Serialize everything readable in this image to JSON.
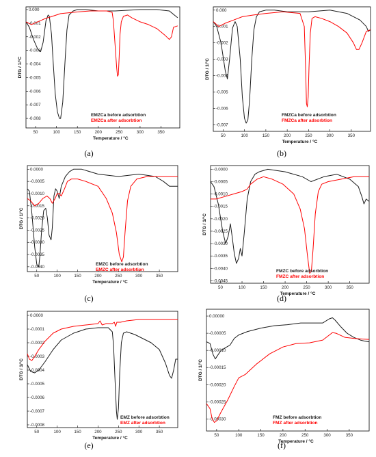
{
  "colors": {
    "before": "#1a1a1a",
    "after": "#ff0000"
  },
  "chart_data": [
    {
      "type": "line",
      "caption": "(a)",
      "xlabel": "Temperature / °C",
      "ylabel": "DTG / 1/°C",
      "xlim": [
        27,
        395
      ],
      "ylim": [
        -0.0087,
        0.0002
      ],
      "xticks": [
        50,
        100,
        150,
        200,
        250,
        300,
        350
      ],
      "xtick_labels": [
        "50",
        "100",
        "150",
        "200",
        "250",
        "300",
        "350"
      ],
      "yticks": [
        0,
        -0.001,
        -0.002,
        -0.003,
        -0.004,
        -0.005,
        -0.006,
        -0.007,
        -0.008
      ],
      "ytick_labels": [
        "0.000",
        "-0.001",
        "-0.002",
        "-0.003",
        "-0.004",
        "-0.005",
        "-0.006",
        "-0.007",
        "-0.008"
      ],
      "series": [
        {
          "name": "EMZCa before adsorbtion",
          "color": "#1a1a1a",
          "x": [
            27,
            35,
            45,
            55,
            62,
            68,
            75,
            80,
            83,
            88,
            92,
            97,
            102,
            107,
            110,
            115,
            120,
            125,
            130,
            140,
            150,
            170,
            200,
            240,
            300,
            340,
            370,
            390
          ],
          "y": [
            -0.0009,
            -0.0013,
            -0.0022,
            -0.0029,
            -0.0031,
            -0.0024,
            -0.0008,
            -0.0004,
            -0.0005,
            -0.0018,
            -0.0038,
            -0.0062,
            -0.0075,
            -0.008,
            -0.008,
            -0.0068,
            -0.004,
            -0.0015,
            -0.0004,
            -0.0001,
            0.0,
            0.0,
            -0.0001,
            -0.0001,
            0.0,
            0.0,
            -0.0001,
            -0.0006
          ]
        },
        {
          "name": "EMZCa after adsorbtion",
          "color": "#ff0000",
          "x": [
            27,
            40,
            55,
            70,
            90,
            110,
            140,
            180,
            220,
            233,
            236,
            240,
            244,
            246,
            248,
            250,
            252,
            255,
            260,
            270,
            280,
            300,
            320,
            340,
            360,
            370,
            375,
            380,
            390
          ],
          "y": [
            -0.0009,
            -0.0011,
            -0.0009,
            -0.0007,
            -0.0005,
            -0.0003,
            -0.0002,
            -0.0001,
            -0.0001,
            -0.0002,
            -0.0008,
            -0.0025,
            -0.0043,
            -0.0049,
            -0.0048,
            -0.0035,
            -0.0018,
            -0.0009,
            -0.0005,
            -0.0004,
            -0.0006,
            -0.0009,
            -0.0011,
            -0.0014,
            -0.0019,
            -0.0022,
            -0.002,
            -0.0013,
            -0.0012
          ]
        }
      ]
    },
    {
      "type": "line",
      "caption": "(b)",
      "xlabel": "Temperature / °C",
      "ylabel": "DTG / 1/°C",
      "xlim": [
        27,
        395
      ],
      "ylim": [
        -0.0074,
        0.0002
      ],
      "xticks": [
        50,
        100,
        150,
        200,
        250,
        300,
        350
      ],
      "xtick_labels": [
        "50",
        "100",
        "150",
        "200",
        "250",
        "300",
        "350"
      ],
      "yticks": [
        0,
        -0.001,
        -0.002,
        -0.003,
        -0.004,
        -0.005,
        -0.006,
        -0.007
      ],
      "ytick_labels": [
        "0.000",
        "-0.001",
        "-0.002",
        "-0.003",
        "-0.004",
        "-0.005",
        "-0.006",
        "-0.007"
      ],
      "series": [
        {
          "name": "FMZCa before adsorbtion",
          "color": "#1a1a1a",
          "x": [
            27,
            35,
            45,
            55,
            60,
            65,
            72,
            78,
            83,
            90,
            95,
            100,
            104,
            108,
            112,
            117,
            122,
            128,
            135,
            150,
            170,
            200,
            250,
            300,
            340,
            370,
            385,
            390,
            395
          ],
          "y": [
            -0.0007,
            -0.001,
            -0.002,
            -0.0037,
            -0.0042,
            -0.003,
            -0.0011,
            -0.0007,
            -0.001,
            -0.003,
            -0.0053,
            -0.0066,
            -0.0069,
            -0.0067,
            -0.0055,
            -0.003,
            -0.0012,
            -0.0004,
            -0.0001,
            0.0,
            0.0,
            -0.0001,
            -0.0001,
            0.0,
            -0.0002,
            -0.0006,
            -0.001,
            -0.0013,
            -0.0012
          ]
        },
        {
          "name": "FMZCa after adsorbtion",
          "color": "#ff0000",
          "x": [
            27,
            40,
            55,
            75,
            95,
            120,
            150,
            190,
            230,
            240,
            243,
            245,
            247,
            249,
            251,
            254,
            258,
            265,
            280,
            300,
            320,
            340,
            355,
            362,
            368,
            375,
            385,
            395
          ],
          "y": [
            -0.0007,
            -0.001,
            -0.0008,
            -0.0006,
            -0.0004,
            -0.0003,
            -0.0002,
            -0.0001,
            -0.0002,
            -0.001,
            -0.0035,
            -0.0057,
            -0.0059,
            -0.0053,
            -0.0035,
            -0.0014,
            -0.0005,
            -0.0004,
            -0.0005,
            -0.0007,
            -0.001,
            -0.0014,
            -0.002,
            -0.0024,
            -0.0024,
            -0.002,
            -0.0013,
            -0.0012
          ]
        }
      ]
    },
    {
      "type": "line",
      "caption": "(c)",
      "xlabel": "Temperature / °C",
      "ylabel": "DTG / 1/°C",
      "xlim": [
        27,
        395
      ],
      "ylim": [
        -0.0042,
        0.00015
      ],
      "xticks": [
        50,
        100,
        150,
        200,
        250,
        300,
        350
      ],
      "xtick_labels": [
        "50",
        "100",
        "150",
        "200",
        "250",
        "300",
        "350"
      ],
      "yticks": [
        0,
        -0.0005,
        -0.001,
        -0.0015,
        -0.002,
        -0.0025,
        -0.003,
        -0.0035,
        -0.004
      ],
      "ytick_labels": [
        "0.0000",
        "-0.0005",
        "-0.0010",
        "-0.0015",
        "-0.0020",
        "-0.0025",
        "-0.0030",
        "-0.0035",
        "-0.0040"
      ],
      "series": [
        {
          "name": "EMZC before adsorbtion",
          "color": "#1a1a1a",
          "x": [
            27,
            32,
            38,
            45,
            50,
            55,
            58,
            62,
            67,
            72,
            76,
            80,
            85,
            88,
            92,
            96,
            100,
            105,
            110,
            115,
            120,
            130,
            140,
            160,
            200,
            250,
            300,
            340,
            360,
            375,
            385,
            395
          ],
          "y": [
            -0.0008,
            -0.0009,
            -0.0018,
            -0.0032,
            -0.0039,
            -0.004,
            -0.0035,
            -0.0025,
            -0.0017,
            -0.0016,
            -0.002,
            -0.0027,
            -0.0029,
            -0.0024,
            -0.0011,
            -0.0008,
            -0.0009,
            -0.0012,
            -0.0007,
            -0.0005,
            -0.0003,
            -0.0001,
            0.0,
            0.0,
            -0.0002,
            -0.0003,
            -0.0002,
            -0.0003,
            -0.0005,
            -0.0007,
            -0.0007,
            -0.0007
          ]
        },
        {
          "name": "EMZC after adsorbtion",
          "color": "#ff0000",
          "x": [
            27,
            35,
            45,
            55,
            65,
            75,
            82,
            88,
            95,
            100,
            105,
            110,
            118,
            125,
            135,
            150,
            170,
            200,
            220,
            235,
            245,
            252,
            258,
            262,
            266,
            272,
            280,
            295,
            320,
            360,
            395
          ],
          "y": [
            -0.0012,
            -0.0013,
            -0.0015,
            -0.0014,
            -0.0012,
            -0.0011,
            -0.0012,
            -0.0014,
            -0.0012,
            -0.001,
            -0.001,
            -0.0011,
            -0.0008,
            -0.0005,
            -0.0004,
            -0.0004,
            -0.0005,
            -0.0007,
            -0.0012,
            -0.0018,
            -0.0026,
            -0.0035,
            -0.0038,
            -0.0036,
            -0.0026,
            -0.0013,
            -0.0007,
            -0.0004,
            -0.0003,
            -0.0003,
            -0.0003
          ]
        }
      ]
    },
    {
      "type": "line",
      "caption": "(d)",
      "xlabel": "Temperature / °C",
      "ylabel": "DTG / 1/°C",
      "xlim": [
        27,
        395
      ],
      "ylim": [
        -0.0046,
        0.00015
      ],
      "xticks": [
        50,
        100,
        150,
        200,
        250,
        300,
        350
      ],
      "xtick_labels": [
        "50",
        "100",
        "150",
        "200",
        "250",
        "300",
        "350"
      ],
      "yticks": [
        0,
        -0.0005,
        -0.001,
        -0.0015,
        -0.002,
        -0.0025,
        -0.003,
        -0.0035,
        -0.004,
        -0.0045
      ],
      "ytick_labels": [
        "-0.0000",
        "-0.0005",
        "-0.0010",
        "-0.0015",
        "-0.0020",
        "-0.0025",
        "-0.0030",
        "-0.0035",
        "-0.0040",
        "-0.0045"
      ],
      "series": [
        {
          "name": "FMZC before adsorbtion",
          "color": "#1a1a1a",
          "x": [
            27,
            35,
            45,
            55,
            62,
            68,
            73,
            77,
            82,
            87,
            92,
            96,
            100,
            105,
            112,
            120,
            130,
            140,
            160,
            200,
            240,
            260,
            290,
            320,
            350,
            370,
            378,
            383,
            388,
            395
          ],
          "y": [
            -0.0005,
            -0.0007,
            -0.0014,
            -0.0025,
            -0.003,
            -0.0027,
            -0.0022,
            -0.0027,
            -0.0034,
            -0.0038,
            -0.0036,
            -0.0032,
            -0.0035,
            -0.0026,
            -0.0012,
            -0.0005,
            -0.0002,
            -0.0001,
            0.0,
            -0.0001,
            -0.0003,
            -0.0005,
            -0.0003,
            -0.0002,
            -0.0004,
            -0.0007,
            -0.0011,
            -0.0014,
            -0.0012,
            -0.0013
          ]
        },
        {
          "name": "FMZC after adsorbtion",
          "color": "#ff0000",
          "x": [
            27,
            40,
            60,
            80,
            100,
            112,
            120,
            135,
            150,
            170,
            195,
            220,
            235,
            245,
            252,
            257,
            261,
            265,
            270,
            277,
            285,
            300,
            330,
            360,
            395
          ],
          "y": [
            -0.0012,
            -0.0012,
            -0.0011,
            -0.001,
            -0.0009,
            -0.0008,
            -0.0006,
            -0.0004,
            -0.0003,
            -0.0004,
            -0.0006,
            -0.001,
            -0.0016,
            -0.0024,
            -0.0035,
            -0.0042,
            -0.0041,
            -0.0032,
            -0.0018,
            -0.0009,
            -0.0006,
            -0.0005,
            -0.0004,
            -0.0003,
            -0.0003
          ]
        }
      ]
    },
    {
      "type": "line",
      "caption": "(e)",
      "xlabel": "Temperature / °C",
      "ylabel": "DTG / 1/°C",
      "xlim": [
        27,
        395
      ],
      "ylim": [
        -0.00082,
        3e-05
      ],
      "xticks": [
        50,
        100,
        150,
        200,
        250,
        300,
        350
      ],
      "xtick_labels": [
        "50",
        "100",
        "150",
        "200",
        "250",
        "300",
        "350"
      ],
      "yticks": [
        0,
        -0.0001,
        -0.0002,
        -0.0003,
        -0.0004,
        -0.0005,
        -0.0006,
        -0.0007,
        -0.0008
      ],
      "ytick_labels": [
        "0.0000",
        "-0.0001",
        "-0.0002",
        "-0.0003",
        "-0.0004",
        "-0.0005",
        "-0.0006",
        "-0.0007",
        "-0.0008"
      ],
      "series": [
        {
          "name": "EMZ before adsorbtion",
          "color": "#1a1a1a",
          "x": [
            27,
            35,
            45,
            55,
            70,
            90,
            110,
            140,
            170,
            200,
            225,
            235,
            238,
            242,
            245,
            247,
            250,
            253,
            257,
            262,
            270,
            290,
            310,
            330,
            350,
            365,
            375,
            380,
            385,
            390,
            395
          ],
          "y": [
            -0.00036,
            -0.00041,
            -0.00042,
            -0.0004,
            -0.00034,
            -0.00025,
            -0.00018,
            -0.00013,
            -0.0001,
            -9e-05,
            -9e-05,
            -0.00012,
            -0.00022,
            -0.0005,
            -0.0007,
            -0.00076,
            -0.00068,
            -0.00042,
            -0.0002,
            -0.00013,
            -0.00012,
            -0.00014,
            -0.00017,
            -0.0002,
            -0.00025,
            -0.00035,
            -0.00044,
            -0.00046,
            -0.0004,
            -0.00032,
            -0.00032
          ]
        },
        {
          "name": "EMZ after adsorbtion",
          "color": "#ff0000",
          "x": [
            27,
            32,
            38,
            45,
            55,
            70,
            90,
            110,
            140,
            170,
            200,
            205,
            210,
            220,
            235,
            240,
            243,
            246,
            255,
            270,
            300,
            330,
            360,
            395
          ],
          "y": [
            -0.00028,
            -0.00032,
            -0.00033,
            -0.0003,
            -0.00025,
            -0.00019,
            -0.00013,
            -0.0001,
            -8e-05,
            -7e-05,
            -6e-05,
            -4e-05,
            -7e-05,
            -6e-05,
            -6e-05,
            -5e-05,
            -8e-05,
            -5e-05,
            -5e-05,
            -4e-05,
            -3e-05,
            -3e-05,
            -3e-05,
            -3e-05
          ]
        }
      ]
    },
    {
      "type": "line",
      "caption": "(f)",
      "xlabel": "Temperature / °C",
      "ylabel": "DTG / 1/°C",
      "xlim": [
        27,
        395
      ],
      "ylim": [
        -0.000335,
        2e-05
      ],
      "xticks": [
        50,
        100,
        150,
        200,
        250,
        300,
        350
      ],
      "xtick_labels": [
        "50",
        "100",
        "150",
        "200",
        "250",
        "300",
        "350"
      ],
      "yticks": [
        0,
        -5e-05,
        -0.0001,
        -0.00015,
        -0.0002,
        -0.00025,
        -0.0003
      ],
      "ytick_labels": [
        "0.00000",
        "-0.00005",
        "-0.00010",
        "-0.00015",
        "-0.00020",
        "-0.00025",
        "-0.00030"
      ],
      "series": [
        {
          "name": "FMZ before adsorbtion",
          "color": "#1a1a1a",
          "x": [
            27,
            35,
            42,
            47,
            52,
            60,
            70,
            80,
            90,
            100,
            120,
            150,
            180,
            210,
            240,
            270,
            290,
            305,
            312,
            318,
            330,
            345,
            360,
            375,
            385,
            395
          ],
          "y": [
            -7.5e-05,
            -8e-05,
            -0.000112,
            -0.000125,
            -0.000115,
            -0.0001,
            -9.2e-05,
            -8.5e-05,
            -6.5e-05,
            -5.5e-05,
            -4.5e-05,
            -3.5e-05,
            -2.8e-05,
            -2.5e-05,
            -2e-05,
            -2e-05,
            -2e-05,
            -8e-06,
            -5e-06,
            -1.2e-05,
            -3e-05,
            -5e-05,
            -6.2e-05,
            -7e-05,
            -7.3e-05,
            -7.5e-05
          ]
        },
        {
          "name": "FMZ after adsorbtion",
          "color": "#ff0000",
          "x": [
            27,
            35,
            40,
            45,
            50,
            60,
            75,
            90,
            100,
            115,
            140,
            170,
            200,
            230,
            260,
            290,
            305,
            312,
            320,
            340,
            360,
            380,
            395
          ],
          "y": [
            -0.000255,
            -0.00027,
            -0.0003,
            -0.00031,
            -0.000305,
            -0.00028,
            -0.000245,
            -0.000205,
            -0.00018,
            -0.00017,
            -0.00014,
            -0.00011,
            -9e-05,
            -8e-05,
            -7.8e-05,
            -7e-05,
            -5.5e-05,
            -4.8e-05,
            -5e-05,
            -6.2e-05,
            -6.5e-05,
            -6.7e-05,
            -6.8e-05
          ]
        }
      ]
    }
  ]
}
